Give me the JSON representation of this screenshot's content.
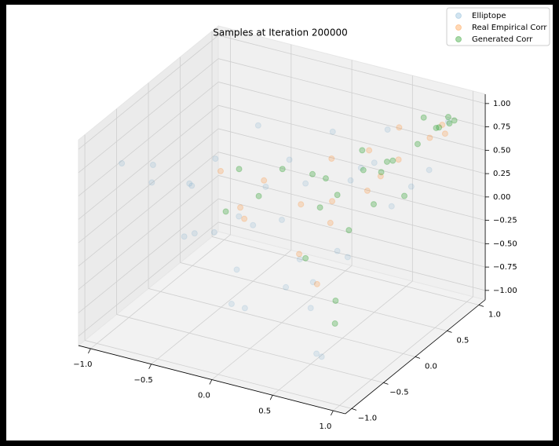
{
  "chart_data": {
    "type": "scatter3d",
    "title": "Samples at Iteration 200000",
    "xlim": [
      -1.1,
      1.1
    ],
    "ylim": [
      -1.1,
      1.1
    ],
    "zlim": [
      -1.1,
      1.1
    ],
    "xticks": [
      {
        "value": -1,
        "label": "−1.0"
      },
      {
        "value": -0.5,
        "label": "−0.5"
      },
      {
        "value": 0,
        "label": "0.0"
      },
      0.5,
      {
        "value": 1,
        "label": "1.0"
      }
    ],
    "yticks": [
      {
        "value": -1,
        "label": "−1.0"
      },
      {
        "value": -0.5,
        "label": "−0.5"
      },
      {
        "value": 0,
        "label": "0.0"
      },
      0.5,
      {
        "value": 1,
        "label": "1.0"
      }
    ],
    "zticks": [
      {
        "value": -1,
        "label": "−1.00"
      },
      {
        "value": -0.75,
        "label": "−0.75"
      },
      {
        "value": -0.5,
        "label": "−0.50"
      },
      {
        "value": -0.25,
        "label": "−0.25"
      },
      {
        "value": 0,
        "label": "0.00"
      },
      0.25,
      {
        "value": 0.5,
        "label": "0.50"
      },
      0.75,
      {
        "value": 1,
        "label": "1.00"
      }
    ],
    "grid": true,
    "legend": "upper right",
    "series": [
      {
        "name": "Elliptope",
        "color": "#1f77b4",
        "alpha": 0.1,
        "x": [
          0.9,
          -0.9,
          0.8,
          -0.8,
          0,
          0.5,
          -0.5,
          0.5,
          -0.5,
          0.3,
          -0.6,
          0.2,
          -0.3,
          0.7,
          -0.7,
          0.1,
          0.6,
          -0.2,
          0.4,
          -0.4,
          0,
          0.8,
          -0.1,
          0.3,
          -0.8,
          0.6,
          -0.5,
          0.2,
          0.7,
          -0.3,
          0.9,
          -0.6,
          0.1,
          -0.9,
          0.4,
          -0.2
        ],
        "y": [
          0.9,
          -0.8,
          -0.9,
          0.85,
          0,
          0.5,
          -0.5,
          -0.5,
          0.5,
          -0.2,
          0.1,
          0.7,
          -0.8,
          -0.3,
          -0.2,
          0.3,
          0.1,
          0.5,
          -0.7,
          -0.3,
          0.8,
          0.2,
          -0.6,
          0.3,
          -0.5,
          -0.6,
          0.7,
          -0.1,
          0.7,
          0.2,
          0.6,
          -0.9,
          -0.9,
          0.3,
          0.9,
          -0.2
        ],
        "z": [
          0.85,
          0.75,
          -0.7,
          -0.7,
          0,
          0.5,
          0.5,
          -0.5,
          -0.5,
          0.6,
          0.4,
          0.1,
          0.2,
          0,
          -0.3,
          -0.8,
          0.7,
          0.3,
          -0.2,
          -0.1,
          0.5,
          0.3,
          -0.6,
          -0.4,
          0.6,
          -0.9,
          -0.2,
          -0.3,
          0.2,
          0.8,
          0.5,
          0.7,
          0,
          -0.1,
          0.6,
          -0.9
        ]
      },
      {
        "name": "Real Empirical Corr",
        "color": "#ff7f0e",
        "alpha": 0.2,
        "x": [
          0.8,
          0.85,
          0.5,
          0.2,
          -0.2,
          0.6,
          0.3,
          -0.4,
          0.7,
          0.1,
          0.4,
          0.9,
          -0.1,
          0.5,
          0,
          0.6,
          -0.5,
          0.3
        ],
        "y": [
          0.8,
          0.9,
          0.6,
          0.4,
          0.1,
          0.2,
          -0.3,
          -0.2,
          0.5,
          0.6,
          0,
          0.85,
          -0.4,
          -0.4,
          0.3,
          0.7,
          0.3,
          0.8
        ],
        "z": [
          0.7,
          0.8,
          0.3,
          0.5,
          0.3,
          0.4,
          -0.1,
          0.5,
          0.6,
          -0.1,
          0.1,
          0.75,
          0.2,
          -0.3,
          0,
          0.8,
          -0.2,
          0.4
        ]
      },
      {
        "name": "Generated Corr",
        "color": "#2ca02c",
        "alpha": 0.3,
        "x": [
          0.9,
          0.92,
          0.85,
          0.8,
          0.95,
          0.7,
          0.6,
          0.5,
          0.4,
          0.3,
          0.1,
          0.2,
          -0.1,
          0.6,
          0.5,
          0.3,
          0.6,
          0.7,
          -0.3,
          -0.4,
          0,
          0.8,
          0.4,
          -0.2,
          0.2,
          0.75
        ],
        "y": [
          0.9,
          0.88,
          0.85,
          0.9,
          0.9,
          0.8,
          0.6,
          0.7,
          0.5,
          0.3,
          0.5,
          0.1,
          0.2,
          0.3,
          0.1,
          -0.2,
          -0.3,
          -0.5,
          -0.1,
          0.4,
          0.6,
          0.4,
          0.8,
          -0.5,
          0.9,
          0.8
        ],
        "z": [
          0.9,
          0.85,
          0.8,
          0.75,
          0.88,
          0.6,
          0.5,
          0.4,
          0.6,
          0.2,
          0.2,
          0.5,
          0.4,
          0.2,
          0,
          -0.2,
          -0.5,
          -0.6,
          0.5,
          -0.1,
          -0.2,
          0.3,
          0.2,
          0.3,
          0.1,
          0.9
        ]
      }
    ]
  }
}
